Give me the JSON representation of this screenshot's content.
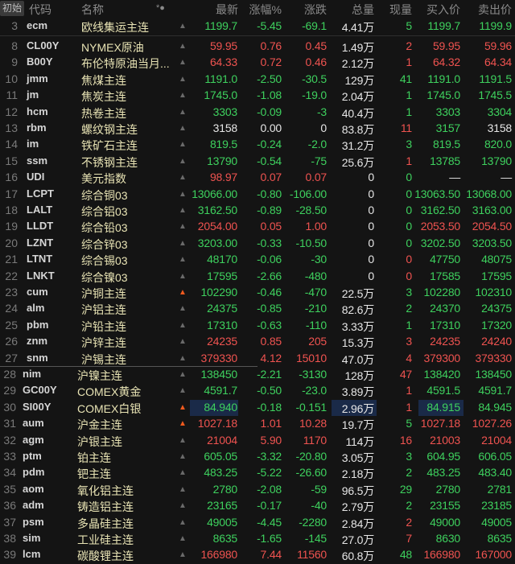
{
  "header": {
    "init_label": "初始",
    "code": "代码",
    "name": "名称",
    "icon_label": "*●",
    "last": "最新",
    "pct": "涨幅%",
    "chg": "涨跌",
    "vol": "总量",
    "cur": "现量",
    "bid": "买入价",
    "ask": "卖出价"
  },
  "colors": {
    "up": "#ef5350",
    "down": "#3ed15e",
    "flat": "#e6e6e6",
    "name": "#e8e3b4",
    "alert_bell": "#f05a1e"
  },
  "rows": [
    {
      "n": "3",
      "code": "ecm",
      "name": "欧线集运主连",
      "bell": false,
      "last": "1199.7",
      "pct": "-5.45",
      "chg": "-69.1",
      "vol": "4.41万",
      "cur": "5",
      "bid": "1199.7",
      "ask": "1199.9",
      "c": "gggwggg"
    },
    {
      "n": "8",
      "code": "CL00Y",
      "name": "NYMEX原油",
      "bell": false,
      "last": "59.95",
      "pct": "0.76",
      "chg": "0.45",
      "vol": "1.49万",
      "cur": "2",
      "bid": "59.95",
      "ask": "59.96",
      "c": "rrrwrrr"
    },
    {
      "n": "9",
      "code": "B00Y",
      "name": "布伦特原油当月...",
      "bell": false,
      "last": "64.33",
      "pct": "0.72",
      "chg": "0.46",
      "vol": "2.12万",
      "cur": "1",
      "bid": "64.32",
      "ask": "64.34",
      "c": "rrrwrrr"
    },
    {
      "n": "10",
      "code": "jmm",
      "name": "焦煤主连",
      "bell": false,
      "last": "1191.0",
      "pct": "-2.50",
      "chg": "-30.5",
      "vol": "129万",
      "cur": "41",
      "bid": "1191.0",
      "ask": "1191.5",
      "c": "gggwggg"
    },
    {
      "n": "11",
      "code": "jm",
      "name": "焦炭主连",
      "bell": false,
      "last": "1745.0",
      "pct": "-1.08",
      "chg": "-19.0",
      "vol": "2.04万",
      "cur": "1",
      "bid": "1745.0",
      "ask": "1745.5",
      "c": "gggwggg"
    },
    {
      "n": "12",
      "code": "hcm",
      "name": "热卷主连",
      "bell": false,
      "last": "3303",
      "pct": "-0.09",
      "chg": "-3",
      "vol": "40.4万",
      "cur": "1",
      "bid": "3303",
      "ask": "3304",
      "c": "gggwggg"
    },
    {
      "n": "13",
      "code": "rbm",
      "name": "螺纹钢主连",
      "bell": false,
      "last": "3158",
      "pct": "0.00",
      "chg": "0",
      "vol": "83.8万",
      "cur": "11",
      "bid": "3157",
      "ask": "3158",
      "c": "wwwwrgw"
    },
    {
      "n": "14",
      "code": "im",
      "name": "铁矿石主连",
      "bell": false,
      "last": "819.5",
      "pct": "-0.24",
      "chg": "-2.0",
      "vol": "31.2万",
      "cur": "3",
      "bid": "819.5",
      "ask": "820.0",
      "c": "gggwggg"
    },
    {
      "n": "15",
      "code": "ssm",
      "name": "不锈钢主连",
      "bell": false,
      "last": "13790",
      "pct": "-0.54",
      "chg": "-75",
      "vol": "25.6万",
      "cur": "1",
      "bid": "13785",
      "ask": "13790",
      "c": "gggwrgg"
    },
    {
      "n": "16",
      "code": "UDI",
      "name": "美元指数",
      "bell": false,
      "last": "98.97",
      "pct": "0.07",
      "chg": "0.07",
      "vol": "0",
      "cur": "0",
      "bid": "—",
      "ask": "—",
      "c": "rrrwgww"
    },
    {
      "n": "17",
      "code": "LCPT",
      "name": "综合铜03",
      "bell": false,
      "last": "13066.00",
      "pct": "-0.80",
      "chg": "-106.00",
      "vol": "0",
      "cur": "0",
      "bid": "13063.50",
      "ask": "13068.00",
      "c": "gggwggg"
    },
    {
      "n": "18",
      "code": "LALT",
      "name": "综合铝03",
      "bell": false,
      "last": "3162.50",
      "pct": "-0.89",
      "chg": "-28.50",
      "vol": "0",
      "cur": "0",
      "bid": "3162.50",
      "ask": "3163.00",
      "c": "gggwggg"
    },
    {
      "n": "19",
      "code": "LLDT",
      "name": "综合铅03",
      "bell": false,
      "last": "2054.00",
      "pct": "0.05",
      "chg": "1.00",
      "vol": "0",
      "cur": "0",
      "bid": "2053.50",
      "ask": "2054.50",
      "c": "rrrwgrr"
    },
    {
      "n": "20",
      "code": "LZNT",
      "name": "综合锌03",
      "bell": false,
      "last": "3203.00",
      "pct": "-0.33",
      "chg": "-10.50",
      "vol": "0",
      "cur": "0",
      "bid": "3202.50",
      "ask": "3203.50",
      "c": "gggwggg"
    },
    {
      "n": "21",
      "code": "LTNT",
      "name": "综合锡03",
      "bell": false,
      "last": "48170",
      "pct": "-0.06",
      "chg": "-30",
      "vol": "0",
      "cur": "0",
      "bid": "47750",
      "ask": "48075",
      "c": "gggwrgg"
    },
    {
      "n": "22",
      "code": "LNKT",
      "name": "综合镍03",
      "bell": false,
      "last": "17595",
      "pct": "-2.66",
      "chg": "-480",
      "vol": "0",
      "cur": "0",
      "bid": "17585",
      "ask": "17595",
      "c": "gggwrgg"
    },
    {
      "n": "23",
      "code": "cum",
      "name": "沪铜主连",
      "bell": true,
      "last": "102290",
      "pct": "-0.46",
      "chg": "-470",
      "vol": "22.5万",
      "cur": "3",
      "bid": "102280",
      "ask": "102310",
      "c": "gggwggg"
    },
    {
      "n": "24",
      "code": "alm",
      "name": "沪铝主连",
      "bell": false,
      "last": "24375",
      "pct": "-0.85",
      "chg": "-210",
      "vol": "82.6万",
      "cur": "2",
      "bid": "24370",
      "ask": "24375",
      "c": "gggwggg"
    },
    {
      "n": "25",
      "code": "pbm",
      "name": "沪铅主连",
      "bell": false,
      "last": "17310",
      "pct": "-0.63",
      "chg": "-110",
      "vol": "3.33万",
      "cur": "1",
      "bid": "17310",
      "ask": "17320",
      "c": "gggwggg"
    },
    {
      "n": "26",
      "code": "znm",
      "name": "沪锌主连",
      "bell": false,
      "last": "24235",
      "pct": "0.85",
      "chg": "205",
      "vol": "15.3万",
      "cur": "3",
      "bid": "24235",
      "ask": "24240",
      "c": "rrrwrrr"
    },
    {
      "n": "27",
      "code": "snm",
      "name": "沪锡主连",
      "bell": false,
      "last": "379330",
      "pct": "4.12",
      "chg": "15010",
      "vol": "47.0万",
      "cur": "4",
      "bid": "379300",
      "ask": "379330",
      "c": "rrrwrrr"
    },
    {
      "n": "28",
      "code": "nim",
      "name": "沪镍主连",
      "bell": false,
      "last": "138450",
      "pct": "-2.21",
      "chg": "-3130",
      "vol": "128万",
      "cur": "47",
      "bid": "138420",
      "ask": "138450",
      "c": "gggwrgg"
    },
    {
      "n": "29",
      "code": "GC00Y",
      "name": "COMEX黄金",
      "bell": false,
      "last": "4591.7",
      "pct": "-0.50",
      "chg": "-23.0",
      "vol": "3.89万",
      "cur": "1",
      "bid": "4591.5",
      "ask": "4591.7",
      "c": "gggwrgg"
    },
    {
      "n": "30",
      "code": "SI00Y",
      "name": "COMEX白银",
      "bell": true,
      "last": "84.940",
      "pct": "-0.18",
      "chg": "-0.151",
      "vol": "2.96万",
      "cur": "1",
      "bid": "84.915",
      "ask": "84.945",
      "c": "gggwrgg"
    },
    {
      "n": "31",
      "code": "aum",
      "name": "沪金主连",
      "bell": true,
      "last": "1027.18",
      "pct": "1.01",
      "chg": "10.28",
      "vol": "19.7万",
      "cur": "5",
      "bid": "1027.18",
      "ask": "1027.26",
      "c": "rrrwgrr"
    },
    {
      "n": "32",
      "code": "agm",
      "name": "沪银主连",
      "bell": false,
      "last": "21004",
      "pct": "5.90",
      "chg": "1170",
      "vol": "114万",
      "cur": "16",
      "bid": "21003",
      "ask": "21004",
      "c": "rrrwrrr"
    },
    {
      "n": "33",
      "code": "ptm",
      "name": "铂主连",
      "bell": false,
      "last": "605.05",
      "pct": "-3.32",
      "chg": "-20.80",
      "vol": "3.05万",
      "cur": "3",
      "bid": "604.95",
      "ask": "606.05",
      "c": "gggwggg"
    },
    {
      "n": "34",
      "code": "pdm",
      "name": "钯主连",
      "bell": false,
      "last": "483.25",
      "pct": "-5.22",
      "chg": "-26.60",
      "vol": "2.18万",
      "cur": "2",
      "bid": "483.25",
      "ask": "483.40",
      "c": "gggwggg"
    },
    {
      "n": "35",
      "code": "aom",
      "name": "氧化铝主连",
      "bell": false,
      "last": "2780",
      "pct": "-2.08",
      "chg": "-59",
      "vol": "96.5万",
      "cur": "29",
      "bid": "2780",
      "ask": "2781",
      "c": "gggwggg"
    },
    {
      "n": "36",
      "code": "adm",
      "name": "铸造铝主连",
      "bell": false,
      "last": "23165",
      "pct": "-0.17",
      "chg": "-40",
      "vol": "2.79万",
      "cur": "2",
      "bid": "23155",
      "ask": "23185",
      "c": "gggwggg"
    },
    {
      "n": "37",
      "code": "psm",
      "name": "多晶硅主连",
      "bell": false,
      "last": "49005",
      "pct": "-4.45",
      "chg": "-2280",
      "vol": "2.84万",
      "cur": "2",
      "bid": "49000",
      "ask": "49005",
      "c": "gggwrgg"
    },
    {
      "n": "38",
      "code": "sim",
      "name": "工业硅主连",
      "bell": false,
      "last": "8635",
      "pct": "-1.65",
      "chg": "-145",
      "vol": "27.0万",
      "cur": "7",
      "bid": "8630",
      "ask": "8635",
      "c": "gggwrgg"
    },
    {
      "n": "39",
      "code": "lcm",
      "name": "碳酸锂主连",
      "bell": false,
      "last": "166980",
      "pct": "7.44",
      "chg": "11560",
      "vol": "60.8万",
      "cur": "48",
      "bid": "166980",
      "ask": "167000",
      "c": "rrrwgrr"
    }
  ]
}
